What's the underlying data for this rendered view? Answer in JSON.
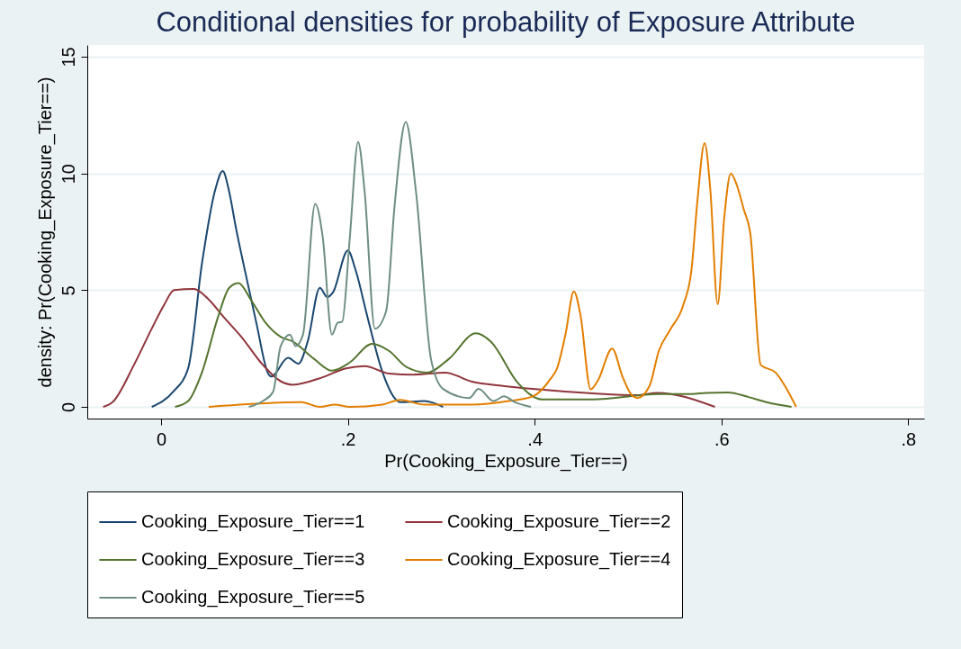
{
  "chart_data": {
    "type": "line",
    "title": "Conditional densities for probability of Exposure Attribute",
    "xlabel": "Pr(Cooking_Exposure_Tier==)",
    "ylabel": "density: Pr(Cooking_Exposure_Tier==)",
    "xlim": [
      -0.079,
      0.817
    ],
    "ylim": [
      -0.5,
      15.5
    ],
    "xticks": [
      {
        "value": 0,
        "label": "0"
      },
      {
        "value": 0.2,
        "label": ".2"
      },
      {
        "value": 0.4,
        "label": ".4"
      },
      {
        "value": 0.6,
        "label": ".6"
      },
      {
        "value": 0.8,
        "label": ".8"
      }
    ],
    "yticks": [
      0,
      5,
      10,
      15
    ],
    "grid": "y",
    "legend": "bottom",
    "line_style": "solid",
    "marker": "none",
    "series": [
      {
        "name": "Cooking_Exposure_Tier==1",
        "color": "#1a476f",
        "x": [
          -0.01,
          0.013,
          0.029,
          0.044,
          0.058,
          0.066,
          0.073,
          0.08,
          0.09,
          0.102,
          0.115,
          0.118,
          0.136,
          0.147,
          0.157,
          0.17,
          0.178,
          0.184,
          0.2,
          0.208,
          0.221,
          0.237,
          0.25,
          0.256,
          0.282,
          0.302
        ],
        "values": [
          0,
          0.65,
          1.65,
          6.2,
          9.3,
          10.1,
          9.2,
          7.7,
          5.8,
          3.6,
          1.4,
          1.3,
          2.1,
          1.85,
          2.8,
          5.1,
          4.7,
          4.9,
          6.7,
          5.9,
          3.85,
          1.5,
          0.38,
          0.2,
          0.25,
          0
        ]
      },
      {
        "name": "Cooking_Exposure_Tier==2",
        "color": "#90353b",
        "x": [
          -0.062,
          -0.052,
          -0.029,
          -0.01,
          0.003,
          0.014,
          0.035,
          0.051,
          0.067,
          0.087,
          0.109,
          0.128,
          0.141,
          0.173,
          0.198,
          0.218,
          0.244,
          0.27,
          0.304,
          0.333,
          0.366,
          0.398,
          0.462,
          0.51,
          0.531,
          0.593
        ],
        "values": [
          0,
          0.2,
          1.8,
          3.35,
          4.35,
          5.0,
          5.05,
          4.6,
          3.85,
          2.95,
          1.8,
          1.1,
          0.95,
          1.27,
          1.65,
          1.75,
          1.43,
          1.38,
          1.47,
          1.08,
          0.9,
          0.77,
          0.58,
          0.5,
          0.6,
          0
        ]
      },
      {
        "name": "Cooking_Exposure_Tier==3",
        "color": "#55752f",
        "x": [
          0.015,
          0.029,
          0.044,
          0.061,
          0.073,
          0.083,
          0.096,
          0.112,
          0.128,
          0.141,
          0.164,
          0.183,
          0.202,
          0.226,
          0.244,
          0.263,
          0.285,
          0.308,
          0.337,
          0.353,
          0.382,
          0.408,
          0.462,
          0.533,
          0.568,
          0.584,
          0.607,
          0.629,
          0.648,
          0.675
        ],
        "values": [
          0,
          0.25,
          1.5,
          3.85,
          5.1,
          5.3,
          4.6,
          3.6,
          3.0,
          2.8,
          2.05,
          1.55,
          1.9,
          2.7,
          2.4,
          1.7,
          1.47,
          2.05,
          3.15,
          2.8,
          1.03,
          0.32,
          0.32,
          0.55,
          0.55,
          0.6,
          0.62,
          0.42,
          0.2,
          0
        ]
      },
      {
        "name": "Cooking_Exposure_Tier==4",
        "color": "#e37e00",
        "x": [
          0.051,
          0.15,
          0.17,
          0.186,
          0.202,
          0.237,
          0.256,
          0.282,
          0.333,
          0.372,
          0.398,
          0.417,
          0.424,
          0.433,
          0.442,
          0.449,
          0.46,
          0.468,
          0.483,
          0.494,
          0.504,
          0.51,
          0.523,
          0.533,
          0.545,
          0.559,
          0.568,
          0.574,
          0.582,
          0.588,
          0.596,
          0.603,
          0.61,
          0.616,
          0.624,
          0.631,
          0.642,
          0.658,
          0.668,
          0.68
        ],
        "values": [
          0,
          0.2,
          0,
          0.1,
          0,
          0.1,
          0.3,
          0.1,
          0.1,
          0.25,
          0.45,
          1.2,
          1.65,
          3.1,
          4.95,
          3.95,
          0.75,
          1.15,
          2.5,
          1.3,
          0.5,
          0.38,
          0.9,
          2.4,
          3.3,
          4.35,
          5.9,
          8.7,
          11.3,
          9.35,
          4.4,
          8.1,
          10.0,
          9.55,
          8.45,
          7.4,
          1.8,
          1.47,
          0.9,
          0
        ]
      },
      {
        "name": "Cooking_Exposure_Tier==5",
        "color": "#6e8e84",
        "x": [
          0.094,
          0.109,
          0.12,
          0.128,
          0.138,
          0.144,
          0.152,
          0.165,
          0.173,
          0.183,
          0.189,
          0.194,
          0.202,
          0.211,
          0.218,
          0.229,
          0.241,
          0.25,
          0.262,
          0.273,
          0.289,
          0.302,
          0.33,
          0.34,
          0.356,
          0.367,
          0.379,
          0.396
        ],
        "values": [
          0,
          0.25,
          0.65,
          2.6,
          3.1,
          2.6,
          3.1,
          8.7,
          7.3,
          3.1,
          3.6,
          3.65,
          7.2,
          11.35,
          9.2,
          3.35,
          4.1,
          8.6,
          12.2,
          9.2,
          2.05,
          0.77,
          0.38,
          0.77,
          0.25,
          0.45,
          0.2,
          0
        ]
      }
    ]
  }
}
